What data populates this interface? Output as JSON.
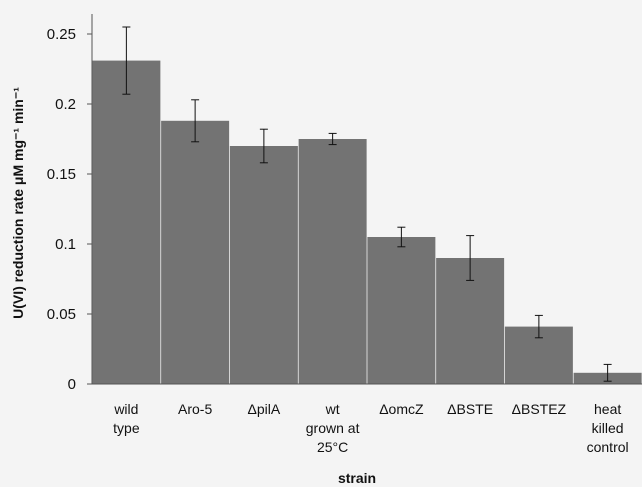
{
  "chart_data": {
    "type": "bar",
    "title": "",
    "xlabel": "strain",
    "ylabel": "U(VI) reduction rate μM mg⁻¹ min⁻¹",
    "ylim": [
      0,
      0.25
    ],
    "yticks": [
      "0",
      "0.05",
      "0.1",
      "0.15",
      "0.2",
      "0.25"
    ],
    "grid": false,
    "bar_color": "#737373",
    "categories": [
      [
        "wild",
        "type"
      ],
      [
        "Aro-5"
      ],
      [
        "ΔpilA"
      ],
      [
        "wt",
        "grown at",
        "25°C"
      ],
      [
        "ΔomcZ"
      ],
      [
        "ΔBSTE"
      ],
      [
        "ΔBSTEZ"
      ],
      [
        "heat",
        "killed",
        "control"
      ]
    ],
    "values": [
      0.231,
      0.188,
      0.17,
      0.175,
      0.105,
      0.09,
      0.041,
      0.008
    ],
    "error": [
      0.024,
      0.015,
      0.012,
      0.004,
      0.007,
      0.016,
      0.008,
      0.006
    ]
  }
}
